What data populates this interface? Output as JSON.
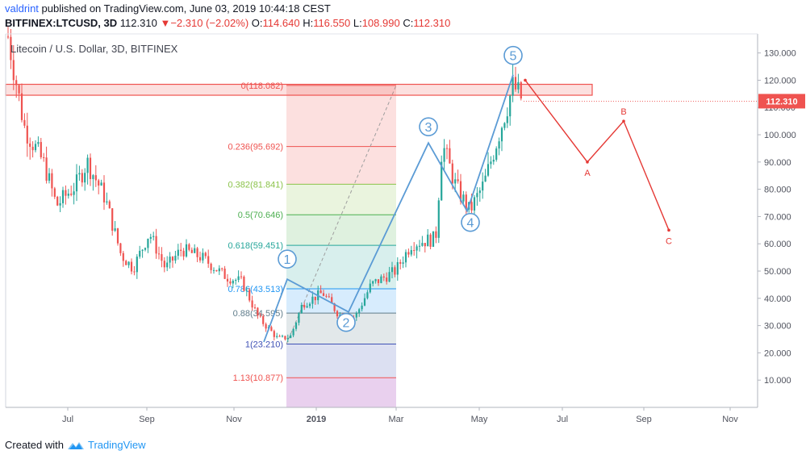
{
  "header": {
    "author": "valdrint",
    "published_text": "published on TradingView.com, June 03, 2019 10:44:18 CEST",
    "symbol": "BITFINEX:LTCUSD, 3D",
    "last": "112.310",
    "change_arrow": "▼",
    "change": "−2.310 (−2.02%)",
    "o_label": "O:",
    "o": "114.640",
    "h_label": "H:",
    "h": "116.550",
    "l_label": "L:",
    "l": "108.990",
    "c_label": "C:",
    "c": "112.310"
  },
  "footer": {
    "created_with": "Created with",
    "brand": "TradingView",
    "logo_icon": "tradingview-logo-icon"
  },
  "colors": {
    "up": "#26a69a",
    "down": "#ef5350",
    "wave": "#5b9bd5",
    "abc": "#e53935",
    "price_tag": "#ef5350",
    "zone": "#ef5350"
  },
  "chart_data": {
    "type": "candlestick",
    "title": "Litecoin / U.S. Dollar, 3D, BITFINEX",
    "ylim": [
      0,
      137
    ],
    "y_ticks": [
      "10.000",
      "20.000",
      "30.000",
      "40.000",
      "50.000",
      "60.000",
      "70.000",
      "80.000",
      "90.000",
      "100.000",
      "110.000",
      "120.000",
      "130.000"
    ],
    "x_ticks": [
      "Jul",
      "Sep",
      "Nov",
      "2019",
      "Mar",
      "May",
      "Jul",
      "Sep",
      "Nov"
    ],
    "last_price": "112.310",
    "resistance_zone": [
      114.5,
      118.5
    ],
    "fibonacci": [
      {
        "label": "0(118.082)",
        "value": 118.082,
        "color": "#ef5350"
      },
      {
        "label": "0.236(95.692)",
        "value": 95.692,
        "color": "#ef5350"
      },
      {
        "label": "0.382(81.841)",
        "value": 81.841,
        "color": "#8bc34a"
      },
      {
        "label": "0.5(70.646)",
        "value": 70.646,
        "color": "#4caf50"
      },
      {
        "label": "0.618(59.451)",
        "value": 59.451,
        "color": "#26a69a"
      },
      {
        "label": "0.786(43.513)",
        "value": 43.513,
        "color": "#2196f3"
      },
      {
        "label": "0.88(34.595)",
        "value": 34.595,
        "color": "#607d8b"
      },
      {
        "label": "1(23.210)",
        "value": 23.21,
        "color": "#3f51b5"
      },
      {
        "label": "1.13(10.877)",
        "value": 10.877,
        "color": "#ef5350"
      }
    ],
    "elliott_wave": [
      {
        "label": "1",
        "value": 47
      },
      {
        "label": "2",
        "value": 35
      },
      {
        "label": "3",
        "value": 97
      },
      {
        "label": "4",
        "value": 72
      },
      {
        "label": "5",
        "value": 122
      }
    ],
    "abc_projection": [
      {
        "label": "",
        "value": 120
      },
      {
        "label": "A",
        "value": 90
      },
      {
        "label": "B",
        "value": 105
      },
      {
        "label": "C",
        "value": 65
      }
    ]
  }
}
